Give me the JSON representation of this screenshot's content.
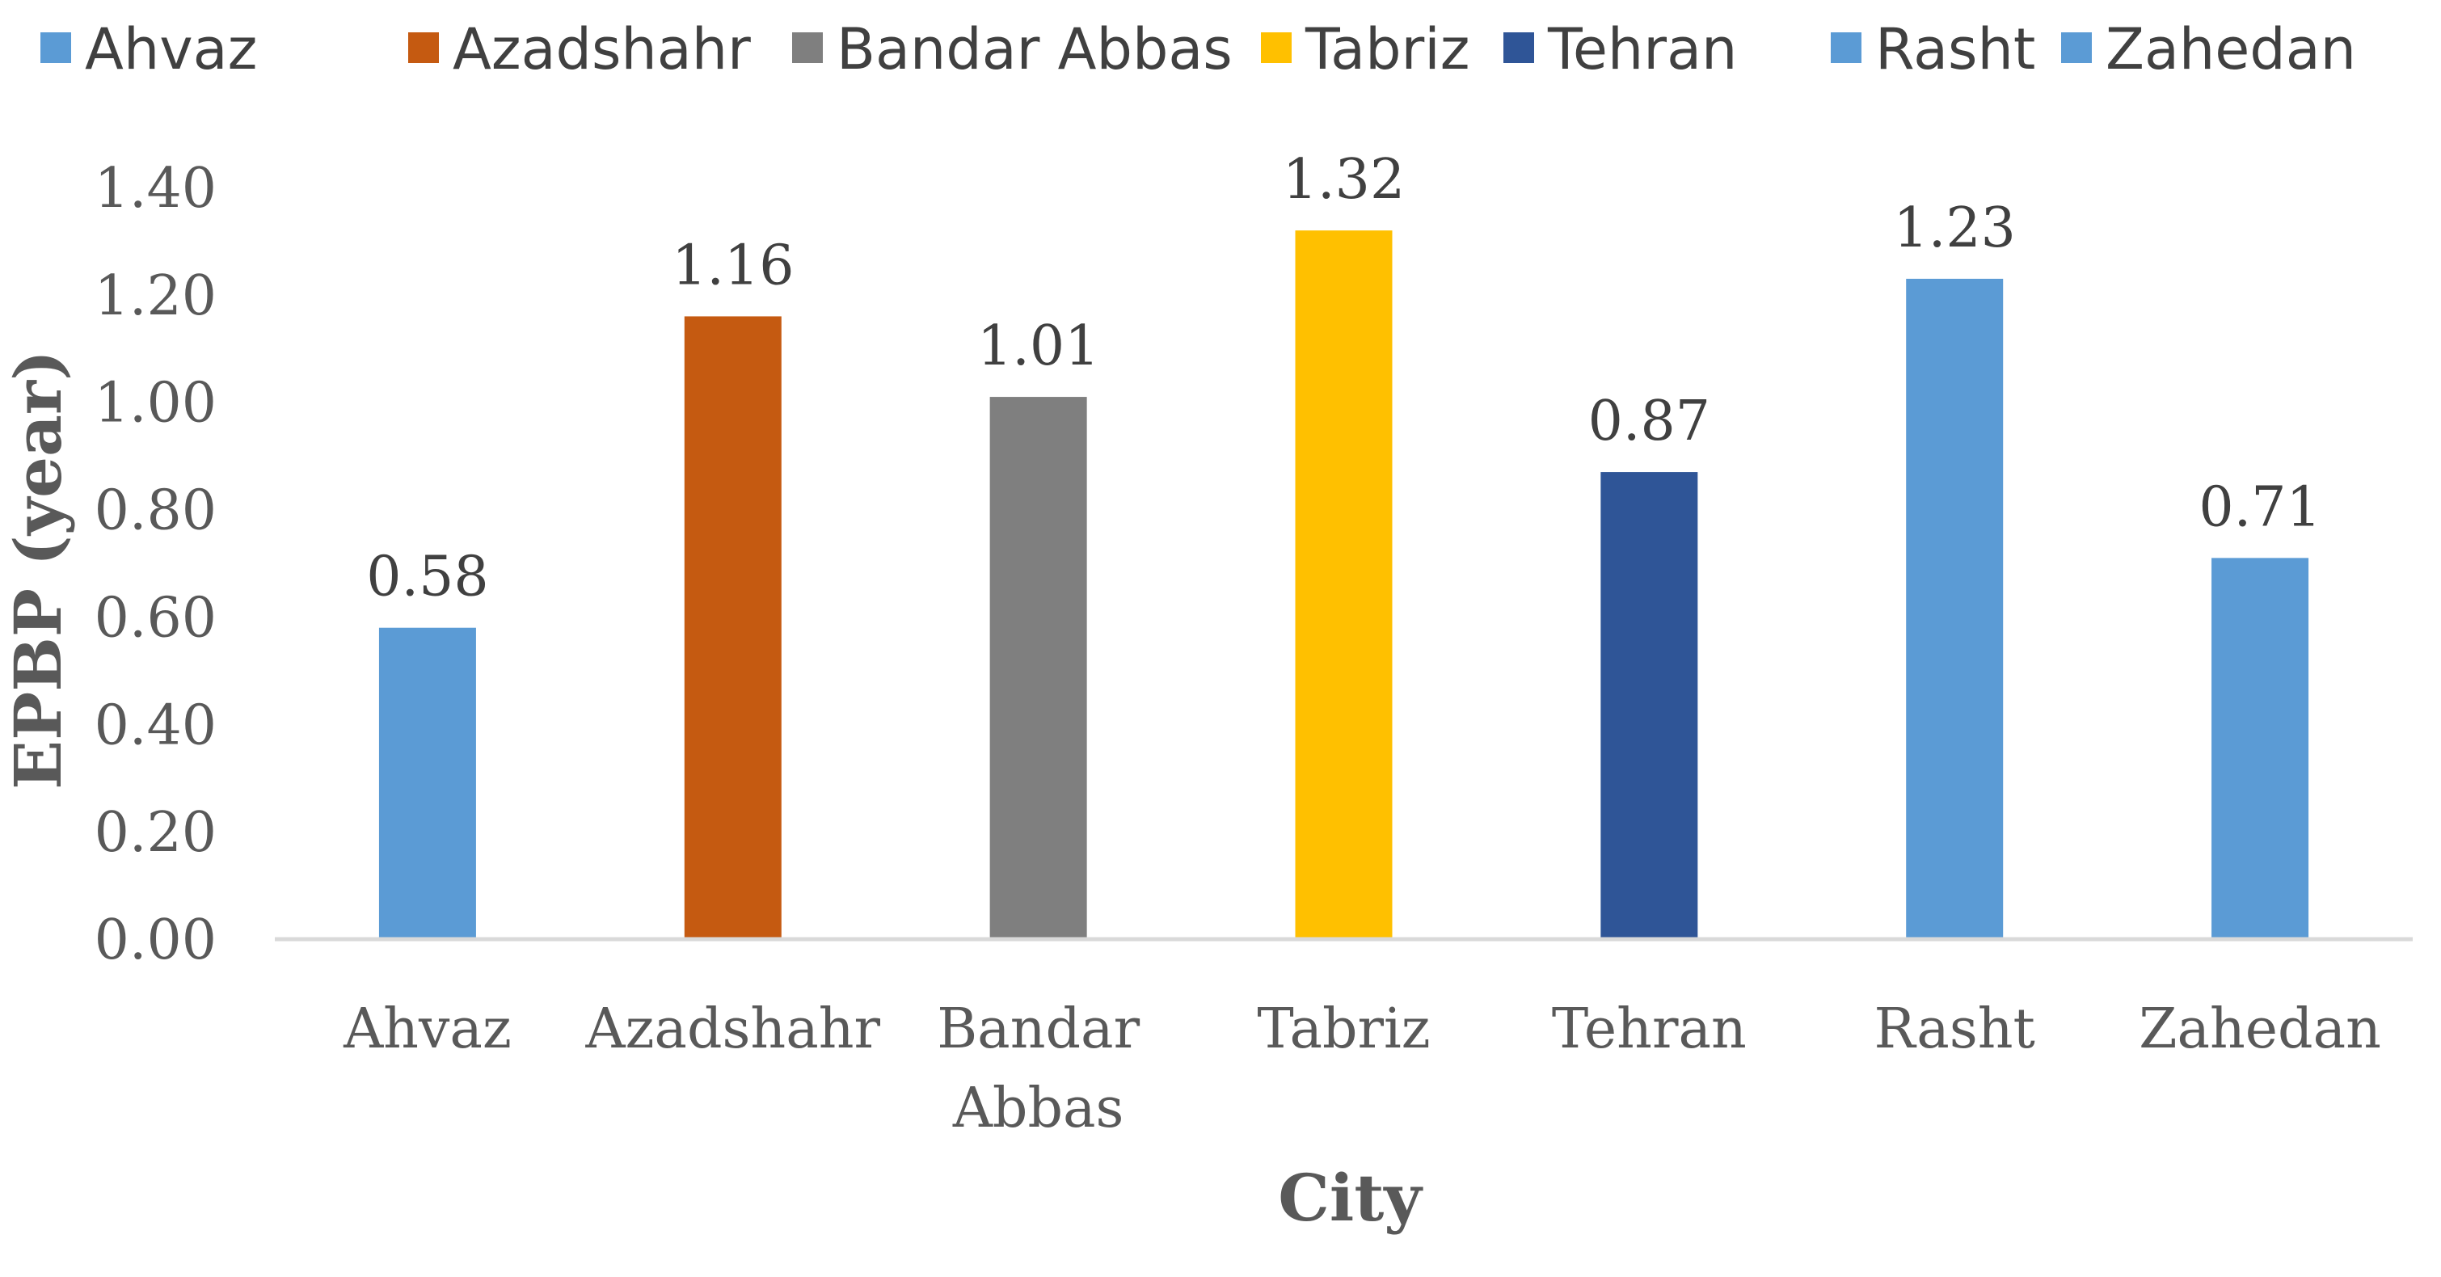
{
  "chart_data": {
    "type": "bar",
    "categories": [
      "Ahvaz",
      "Azadshahr",
      "Bandar Abbas",
      "Tabriz",
      "Tehran",
      "Rasht",
      "Zahedan"
    ],
    "category_lines": [
      [
        "Ahvaz"
      ],
      [
        "Azadshahr"
      ],
      [
        "Bandar",
        "Abbas"
      ],
      [
        "Tabriz"
      ],
      [
        "Tehran"
      ],
      [
        "Rasht"
      ],
      [
        "Zahedan"
      ]
    ],
    "values": [
      0.58,
      1.16,
      1.01,
      1.32,
      0.87,
      1.23,
      0.71
    ],
    "value_labels": [
      "0.58",
      "1.16",
      "1.01",
      "1.32",
      "0.87",
      "1.23",
      "0.71"
    ],
    "colors": [
      "#5B9BD5",
      "#C55A11",
      "#7F7F7F",
      "#FFC000",
      "#2F5597",
      "#5B9BD5",
      "#5B9BD5"
    ],
    "legend": [
      {
        "name": "Ahvaz",
        "color": "#5B9BD5"
      },
      {
        "name": "Azadshahr",
        "color": "#C55A11"
      },
      {
        "name": "Bandar Abbas",
        "color": "#7F7F7F"
      },
      {
        "name": "Tabriz",
        "color": "#FFC000"
      },
      {
        "name": "Tehran",
        "color": "#2F5597"
      },
      {
        "name": "Rasht",
        "color": "#5B9BD5"
      },
      {
        "name": "Zahedan",
        "color": "#5B9BD5"
      }
    ],
    "legend_position": "top",
    "xlabel": "City",
    "ylabel": "EPBP (year)",
    "ylim": [
      0,
      1.4
    ],
    "yticks": [
      "0.00",
      "0.20",
      "0.40",
      "0.60",
      "0.80",
      "1.00",
      "1.20",
      "1.40"
    ],
    "grid": false
  }
}
